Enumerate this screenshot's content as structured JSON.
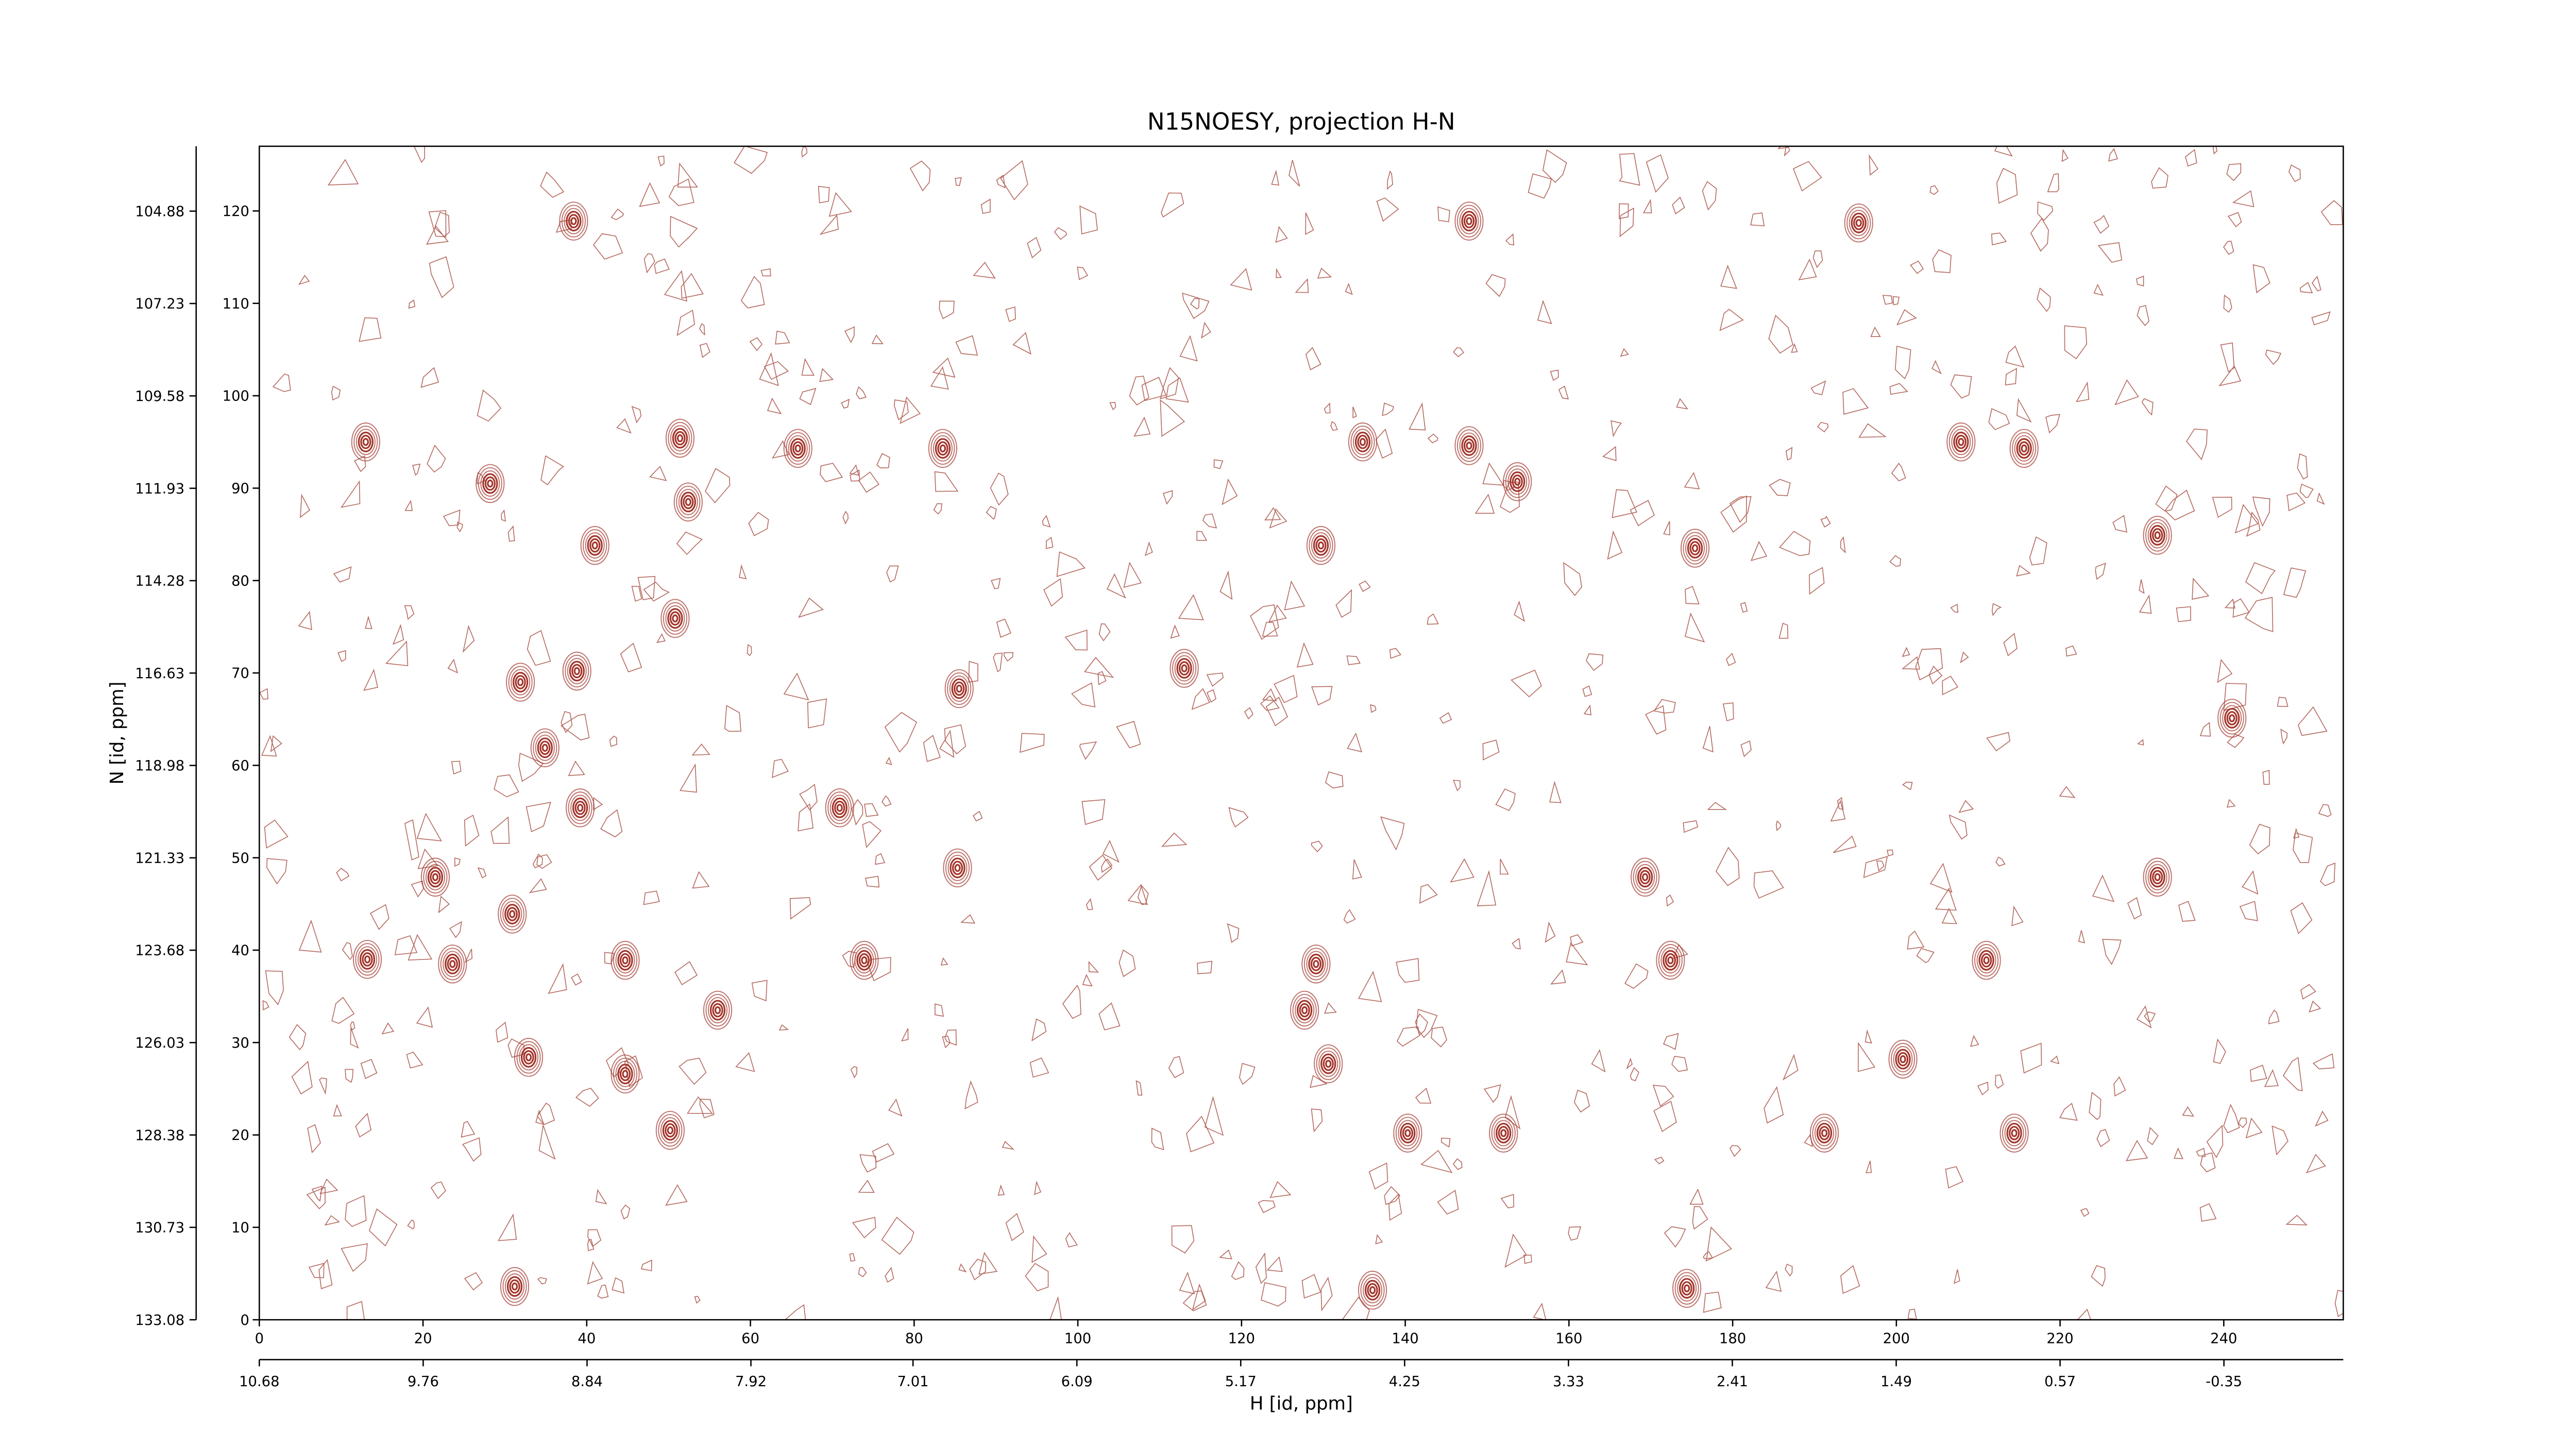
{
  "chart_data": {
    "type": "contour",
    "title": "N15NOESY, projection H-N",
    "xlabel": "H [id, ppm]",
    "ylabel": "N [id, ppm]",
    "color": "#a3362c",
    "xlim": [
      0,
      254.6
    ],
    "ylim": [
      0,
      127
    ],
    "xticks": [
      0,
      20,
      40,
      60,
      80,
      100,
      120,
      140,
      160,
      180,
      200,
      220,
      240
    ],
    "yticks": [
      0,
      10,
      20,
      30,
      40,
      50,
      60,
      70,
      80,
      90,
      100,
      110,
      120
    ],
    "x2lim": [
      10.68,
      -1.02
    ],
    "x2ticks": [
      10.68,
      9.76,
      8.84,
      7.92,
      7.01,
      6.09,
      5.17,
      4.25,
      3.33,
      2.41,
      1.49,
      0.57,
      -0.35
    ],
    "y2lim": [
      133.08,
      103.23
    ],
    "y2ticks": [
      133.08,
      130.73,
      128.38,
      126.03,
      123.68,
      121.33,
      118.98,
      116.63,
      114.28,
      111.93,
      109.58,
      107.23,
      104.88
    ],
    "peaks": {
      "x": [
        38.4,
        13,
        51.4,
        28.2,
        52.4,
        41,
        50.8,
        113,
        38.8,
        31.9,
        85.5,
        34.9,
        39.2,
        70.9,
        85.3,
        21.5,
        30.9,
        13.2,
        23.6,
        44.7,
        73.9,
        56,
        32.9,
        44.7,
        50.2,
        31.2,
        129.7,
        134.8,
        147.8,
        153.7,
        129.1,
        130.6,
        127.7,
        136,
        140.3,
        152,
        174.4,
        191.2,
        200.8,
        214.4,
        207.9,
        215.6,
        231.9,
        241,
        231.9,
        172.4,
        211,
        169.3,
        195.4,
        147.8,
        83.5,
        65.8,
        175.4
      ],
      "y": [
        118.9,
        95,
        95.4,
        90.5,
        88.5,
        83.8,
        75.9,
        70.5,
        70.2,
        69,
        68.3,
        61.9,
        55.4,
        55.4,
        48.9,
        47.9,
        43.9,
        39,
        38.5,
        38.9,
        38.9,
        33.5,
        28.4,
        26.6,
        20.5,
        3.6,
        83.8,
        95,
        94.6,
        90.7,
        38.5,
        27.7,
        33.5,
        3.2,
        20.2,
        20.2,
        3.4,
        20.2,
        28.2,
        20.2,
        95,
        94.3,
        84.9,
        65.1,
        47.9,
        38.9,
        38.9,
        47.9,
        118.7,
        118.9,
        94.3,
        94.3,
        83.5
      ]
    }
  }
}
